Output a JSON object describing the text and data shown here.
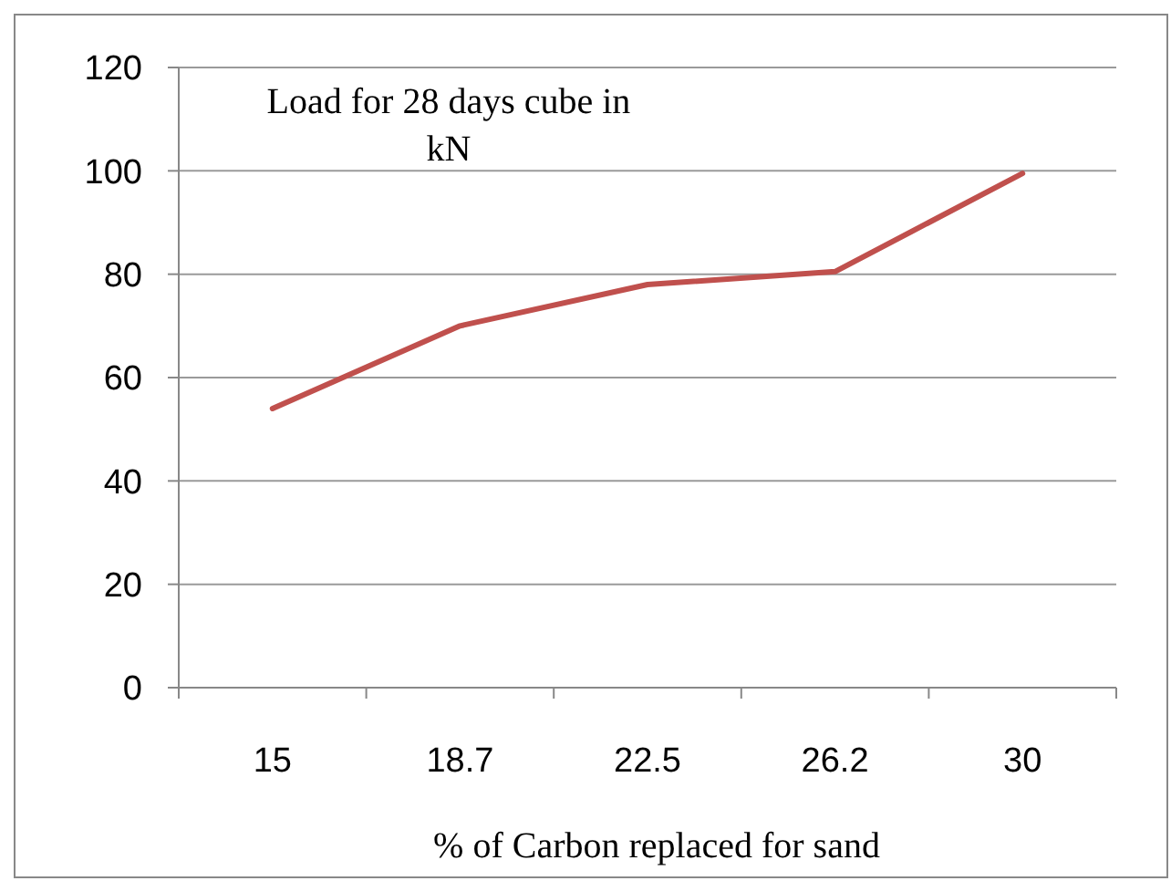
{
  "chart_data": {
    "type": "line",
    "title": "Load for 28 days cube in kN",
    "xlabel": "% of Carbon replaced for sand",
    "categories": [
      "15",
      "18.7",
      "22.5",
      "26.2",
      "30"
    ],
    "series": [
      {
        "color": "#c0504d",
        "values": [
          54,
          70,
          78,
          80.5,
          99.5
        ]
      }
    ],
    "ylim": [
      0,
      120
    ],
    "yticks": [
      0,
      20,
      40,
      60,
      80,
      100,
      120
    ],
    "grid": "y",
    "marker": "none",
    "line_style": "solid"
  }
}
